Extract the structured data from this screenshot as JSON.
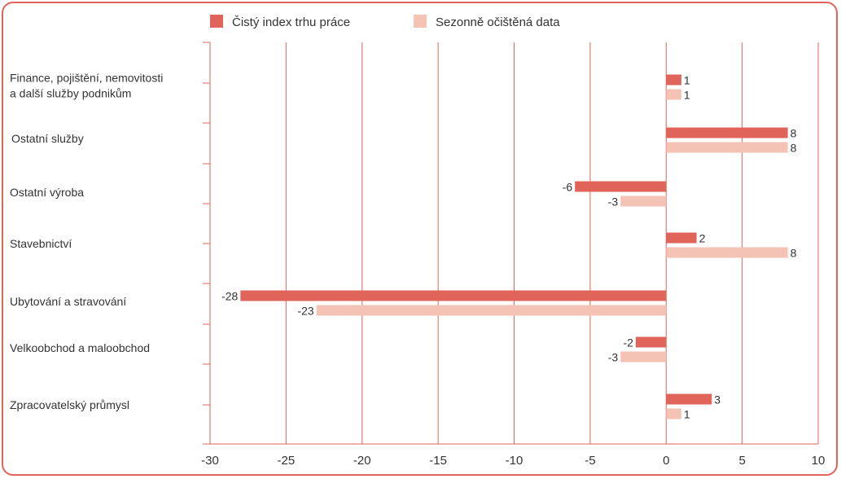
{
  "colors": {
    "frame": "#e0645a",
    "series_primary": "#e0645a",
    "series_secondary": "#f5c3b5",
    "gridline": "#e0645a",
    "text": "#333333"
  },
  "chart_data": {
    "type": "bar",
    "orientation": "horizontal",
    "categories": [
      [
        "Finance, pojištění, nemovitosti",
        "a další služby podnikům"
      ],
      [
        "Ostatní služby"
      ],
      [
        "Ostatní výroba"
      ],
      [
        "Stavebnictví"
      ],
      [
        "Ubytování a stravování"
      ],
      [
        "Velkoobchod a maloobchod"
      ],
      [
        "Zpracovatelský průmysl"
      ]
    ],
    "series": [
      {
        "name": "Čistý index trhu práce",
        "color": "#e0645a",
        "values": [
          1,
          8,
          -6,
          2,
          -28,
          -2,
          3
        ]
      },
      {
        "name": "Sezonně očištěná data",
        "color": "#f5c3b5",
        "values": [
          1,
          8,
          -3,
          8,
          -23,
          -3,
          1
        ]
      }
    ],
    "x_ticks": [
      "-30",
      "-25",
      "-20",
      "-15",
      "-10",
      "-5",
      "0",
      "5",
      "10"
    ],
    "xlim": [
      -30,
      10
    ],
    "grid": true,
    "legend_position": "top"
  }
}
